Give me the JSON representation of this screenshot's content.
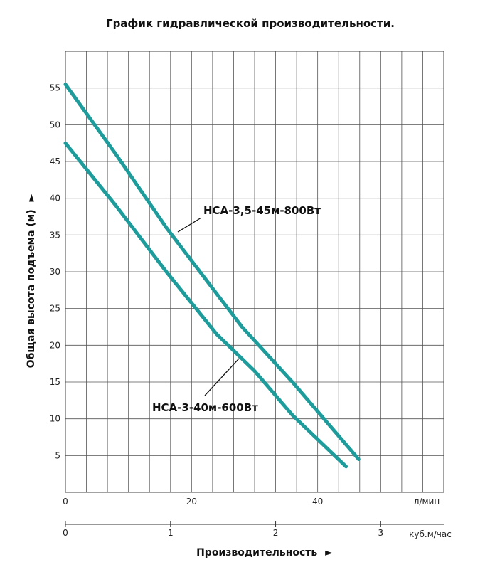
{
  "chart_data": {
    "type": "line",
    "title": "График гидравлической производительности.",
    "ylabel": "Общая высота подъема  (м)",
    "ylabel_arrow": "►",
    "xlabel": "Производительность",
    "xlabel_arrow": "►",
    "x_unit": "л/мин",
    "x2_unit": "куб.м/час",
    "ylim": [
      0,
      60
    ],
    "xlim": [
      0,
      60
    ],
    "x2lim": [
      0,
      3.6
    ],
    "y_ticks": [
      5,
      10,
      15,
      20,
      25,
      30,
      35,
      40,
      45,
      50,
      55
    ],
    "x_ticks": [
      0,
      20,
      40
    ],
    "x2_ticks": [
      0,
      1,
      2,
      3
    ],
    "series": [
      {
        "name": "НСА-3,5-45м-800Вт",
        "color": "#1e9b9b",
        "x": [
          0,
          8,
          16,
          24,
          28,
          36,
          46.5
        ],
        "y": [
          55.5,
          46,
          36,
          27,
          22.5,
          15,
          4.5
        ]
      },
      {
        "name": "НСА-3-40м-600Вт",
        "color": "#1e9b9b",
        "x": [
          0,
          8,
          16,
          24,
          30,
          36,
          44.5
        ],
        "y": [
          47.5,
          39,
          30,
          21.5,
          16.5,
          10.5,
          3.5
        ]
      }
    ]
  }
}
